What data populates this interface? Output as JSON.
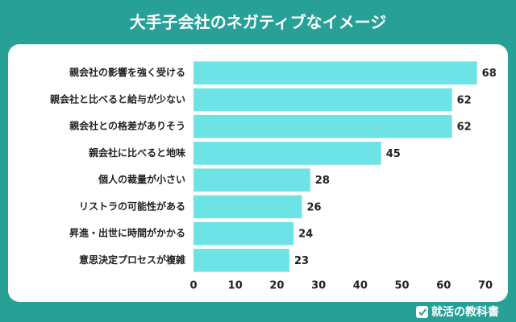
{
  "chart_data": {
    "type": "barh",
    "title": "大手子会社のネガティブなイメージ",
    "categories": [
      "親会社の影響を強く受ける",
      "親会社と比べると給与が少ない",
      "親会社との格差がありそう",
      "親会社に比べると地味",
      "個人の裁量が小さい",
      "リストラの可能性がある",
      "昇進・出世に時間がかかる",
      "意思決定プロセスが複雑"
    ],
    "values": [
      68,
      62,
      62,
      45,
      28,
      26,
      24,
      23
    ],
    "color": "#6ee3e6",
    "xlim": [
      0,
      70
    ],
    "xticks": [
      0,
      10,
      20,
      30,
      40,
      50,
      60,
      70
    ],
    "grid": false
  },
  "footer": {
    "brand": "就活の教科書"
  }
}
